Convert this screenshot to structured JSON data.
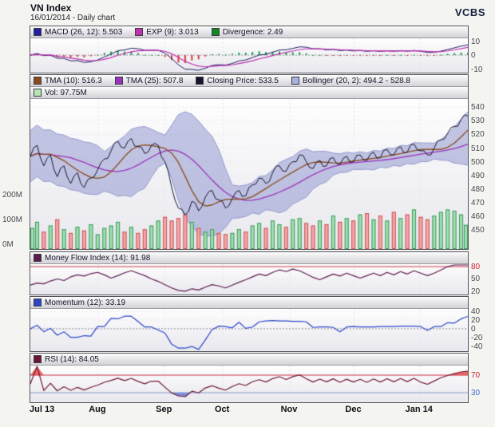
{
  "header": {
    "title": "VN Index",
    "subtitle": "16/01/2014 - Daily chart",
    "brand": "VCBS"
  },
  "chart_data": {
    "type": "line",
    "title": "VN Index",
    "subtitle": "16/01/2014 - Daily chart",
    "x_axis": {
      "labels": [
        "Jul 13",
        "Aug",
        "Sep",
        "Oct",
        "Nov",
        "Dec",
        "Jan 14"
      ],
      "positions": [
        0,
        0.155,
        0.307,
        0.44,
        0.593,
        0.74,
        0.89
      ]
    },
    "panels": [
      {
        "id": "macd",
        "legend": [
          {
            "label": "MACD (26, 12): 5.503",
            "color": "#2020a0"
          },
          {
            "label": "EXP (9): 3.013",
            "color": "#c030b0"
          },
          {
            "label": "Divergence: 2.49",
            "color": "#118822"
          }
        ],
        "ylim": [
          -12.5,
          12
        ],
        "yticks": [
          {
            "v": 10,
            "label": "10"
          },
          {
            "v": 0,
            "label": "0"
          },
          {
            "v": -10,
            "label": "-10"
          }
        ],
        "current": {
          "macd": 5.503,
          "exp": 3.013,
          "divergence": 2.49
        }
      },
      {
        "id": "price",
        "legend": [
          {
            "label": "TMA (10): 516.3",
            "color": "#8a4a1e"
          },
          {
            "label": "TMA (25): 507.8",
            "color": "#9933bb"
          },
          {
            "label": "Closing Price: 533.5",
            "color": "#15152e"
          },
          {
            "label": "Bollinger (20, 2): 494.2 - 528.8",
            "color": "#aab0e0"
          }
        ],
        "legend2": [
          {
            "label": "Vol: 97.75M",
            "color": "#b5e3b5"
          }
        ],
        "ylim": [
          436,
          546
        ],
        "yticks": [
          {
            "v": 540,
            "label": "540"
          },
          {
            "v": 530,
            "label": "530"
          },
          {
            "v": 520,
            "label": "520"
          },
          {
            "v": 510,
            "label": "510"
          },
          {
            "v": 500,
            "label": "500"
          },
          {
            "v": 490,
            "label": "490"
          },
          {
            "v": 480,
            "label": "480"
          },
          {
            "v": 470,
            "label": "470"
          },
          {
            "v": 460,
            "label": "460"
          },
          {
            "v": 450,
            "label": "450"
          }
        ],
        "vol_ticks": [
          {
            "v": 200,
            "label": "200M"
          },
          {
            "v": 100,
            "label": "100M"
          },
          {
            "v": 0,
            "label": "0M"
          }
        ],
        "current": {
          "tma10": 516.3,
          "tma25": 507.8,
          "close": 533.5,
          "bollinger_low": 494.2,
          "bollinger_high": 528.8,
          "volume": "97.75M"
        }
      },
      {
        "id": "mfi",
        "legend": [
          {
            "label": "Money Flow Index (14): 91.98",
            "color": "#5c1a4e"
          }
        ],
        "ylim": [
          12,
          86
        ],
        "threshold": 80,
        "yticks": [
          {
            "v": 80,
            "label": "80",
            "color": "#cc2233"
          },
          {
            "v": 50,
            "label": "50"
          },
          {
            "v": 20,
            "label": "20"
          }
        ],
        "current": {
          "mfi": 91.98
        }
      },
      {
        "id": "momentum",
        "legend": [
          {
            "label": "Momentum (12): 33.19",
            "color": "#2b46c8"
          }
        ],
        "ylim": [
          -52,
          46
        ],
        "yticks": [
          {
            "v": 40,
            "label": "40"
          },
          {
            "v": 20,
            "label": "20"
          },
          {
            "v": 0,
            "label": "0"
          },
          {
            "v": -20,
            "label": "-20"
          },
          {
            "v": -40,
            "label": "-40"
          }
        ],
        "current": {
          "momentum": 33.19
        }
      },
      {
        "id": "rsi",
        "legend": [
          {
            "label": "RSI (14): 84.05",
            "color": "#701535"
          }
        ],
        "ylim": [
          8,
          92
        ],
        "thresholds": {
          "upper": 70,
          "lower": 30
        },
        "yticks": [
          {
            "v": 70,
            "label": "70",
            "color": "#cc2233"
          },
          {
            "v": 30,
            "label": "30",
            "color": "#4466cc"
          }
        ],
        "current": {
          "rsi": 84.05
        }
      }
    ],
    "series": {
      "close": [
        504,
        512,
        497,
        505,
        489,
        497,
        484,
        492,
        481,
        488,
        494,
        502,
        508,
        515,
        510,
        517,
        511,
        506,
        512,
        512,
        500,
        481,
        466,
        461,
        471,
        464,
        474,
        479,
        472,
        466,
        473,
        479,
        475,
        483,
        488,
        484,
        492,
        497,
        493,
        500,
        505,
        500,
        495,
        501,
        497,
        503,
        498,
        504,
        500,
        505,
        501,
        507,
        503,
        509,
        505,
        511,
        507,
        513,
        508,
        505,
        510,
        516,
        521,
        526,
        531,
        533.5
      ],
      "volume_millions": [
        85,
        110,
        70,
        95,
        120,
        80,
        65,
        90,
        75,
        100,
        60,
        85,
        95,
        110,
        70,
        90,
        65,
        80,
        95,
        115,
        130,
        115,
        125,
        140,
        110,
        85,
        70,
        80,
        65,
        60,
        65,
        80,
        70,
        95,
        105,
        85,
        115,
        100,
        90,
        120,
        125,
        105,
        95,
        115,
        100,
        135,
        110,
        125,
        115,
        140,
        145,
        120,
        135,
        115,
        150,
        125,
        140,
        160,
        130,
        120,
        135,
        150,
        160,
        155,
        140,
        97.75
      ],
      "mfi": [
        35,
        40,
        38,
        45,
        50,
        46,
        55,
        60,
        57,
        63,
        66,
        60,
        52,
        58,
        65,
        70,
        64,
        58,
        50,
        44,
        36,
        28,
        22,
        20,
        26,
        23,
        30,
        36,
        33,
        28,
        35,
        42,
        48,
        55,
        62,
        58,
        66,
        72,
        68,
        74,
        70,
        62,
        54,
        48,
        55,
        62,
        57,
        64,
        58,
        52,
        58,
        64,
        58,
        66,
        60,
        68,
        62,
        70,
        64,
        58,
        64,
        72,
        80,
        86,
        90,
        91.98
      ]
    },
    "derived": {
      "tma10": {
        "type": "triangular-moving-average",
        "period": 10
      },
      "tma25": {
        "type": "triangular-moving-average",
        "period": 25
      },
      "bollinger": {
        "period": 20,
        "stddev": 2
      },
      "macd": {
        "fast": 12,
        "slow": 26,
        "signal": 9
      },
      "momentum": {
        "period": 12
      },
      "rsi": {
        "period": 14
      },
      "mfi": {
        "period": 14
      }
    }
  },
  "colors": {
    "grid_h": "#e8e8ee",
    "grid_v": "#e2e2ea",
    "zero_line": "#90909c",
    "threshold": "#cc3344",
    "oversold_line": "#8899cc",
    "macd_line": "#1b1b5e",
    "signal_line": "#c030b0",
    "hist_up": "#15a04a",
    "hist_down": "#d93838",
    "boll_fill": "rgba(138,144,204,0.5)",
    "boll_edge": "#9298ce",
    "close_line": "#15152e",
    "tma10": "#8a4a1e",
    "tma25": "#9933bb",
    "vol_up_fill": "rgba(150,220,165,0.85)",
    "vol_up_edge": "#3a9a5c",
    "vol_down_fill": "rgba(246,160,160,0.9)",
    "vol_down_edge": "#c75555",
    "mfi_line": "#5c1a4e",
    "momentum_line": "#2b46c8",
    "rsi_line": "#701535",
    "rsi_fill_hi": "rgba(235,70,60,0.8)",
    "rsi_fill_lo": "rgba(90,120,220,0.8)"
  }
}
